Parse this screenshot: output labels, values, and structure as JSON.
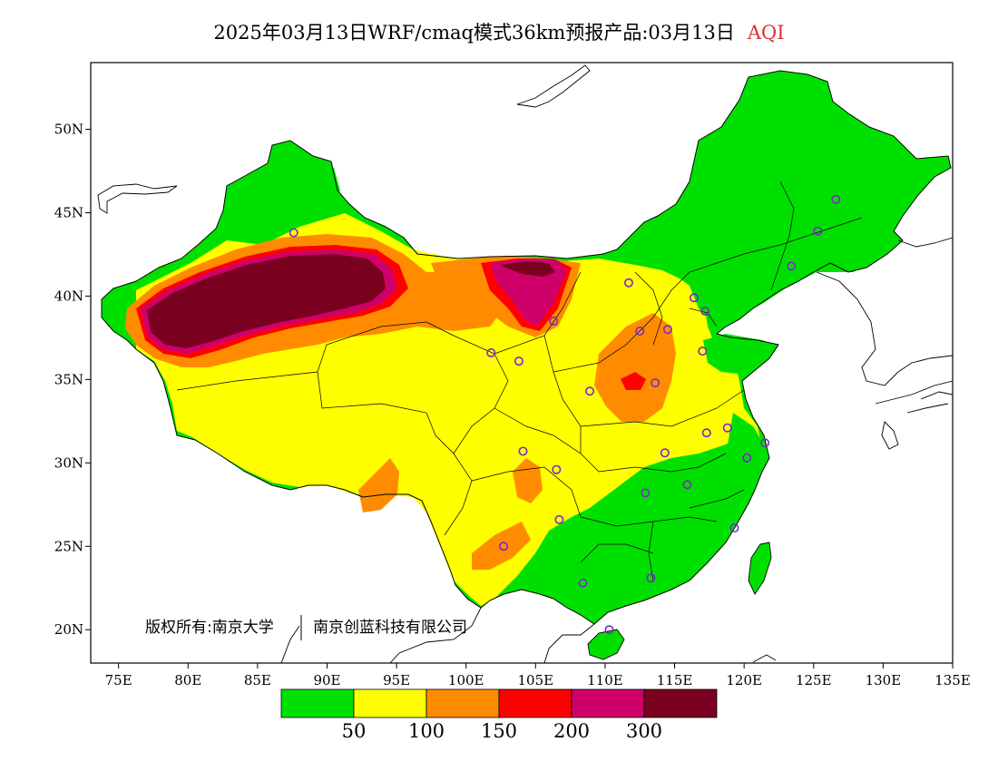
{
  "title": {
    "main": "2025年03月13日WRF/cmaq模式36km预报产品:03月13日",
    "variable": "AQI"
  },
  "axes": {
    "x_ticks": [
      "75E",
      "80E",
      "85E",
      "90E",
      "95E",
      "100E",
      "105E",
      "110E",
      "115E",
      "120E",
      "125E",
      "130E",
      "135E"
    ],
    "y_ticks": [
      "20N",
      "25N",
      "30N",
      "35N",
      "40N",
      "45N",
      "50N"
    ]
  },
  "legend": {
    "colors": [
      "#00e000",
      "#ffff00",
      "#ff8c00",
      "#ff0000",
      "#d0006a",
      "#7a0020"
    ],
    "labels": [
      "50",
      "100",
      "150",
      "200",
      "300"
    ]
  },
  "copyright": {
    "owner": "版权所有:南京大学",
    "partner": "南京创蓝科技有限公司"
  },
  "map_data": {
    "lon_range": [
      73,
      135
    ],
    "lat_range": [
      18,
      54
    ],
    "stations": [
      [
        87.6,
        43.8
      ],
      [
        101.8,
        36.6
      ],
      [
        103.8,
        36.1
      ],
      [
        106.3,
        38.5
      ],
      [
        111.7,
        40.8
      ],
      [
        104.1,
        30.7
      ],
      [
        106.5,
        29.6
      ],
      [
        106.7,
        26.6
      ],
      [
        102.7,
        25.0
      ],
      [
        108.4,
        22.8
      ],
      [
        110.3,
        20.0
      ],
      [
        113.3,
        23.1
      ],
      [
        112.9,
        28.2
      ],
      [
        114.3,
        30.6
      ],
      [
        115.9,
        28.7
      ],
      [
        117.3,
        31.8
      ],
      [
        118.8,
        32.1
      ],
      [
        119.3,
        26.1
      ],
      [
        120.2,
        30.3
      ],
      [
        121.5,
        31.2
      ],
      [
        113.6,
        34.8
      ],
      [
        112.5,
        37.9
      ],
      [
        114.5,
        38.0
      ],
      [
        117.0,
        36.7
      ],
      [
        117.2,
        39.1
      ],
      [
        116.4,
        39.9
      ],
      [
        123.4,
        41.8
      ],
      [
        125.3,
        43.9
      ],
      [
        126.6,
        45.8
      ],
      [
        108.9,
        34.3
      ]
    ]
  }
}
